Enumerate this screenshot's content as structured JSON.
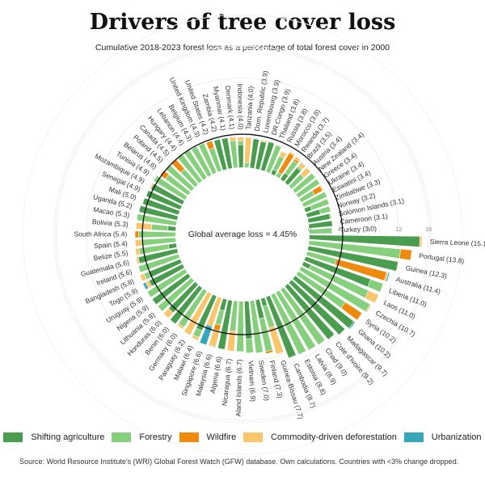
{
  "title": "Drivers of tree cover loss",
  "subtitle": "Cumulative 2018-2023 forest loss as a percentage of total forest cover in 2000",
  "source": "Source: World Resource Institute's (WRI) Global Forest Watch (GFW) database. Own calculations. Countries with <3% change dropped.",
  "chart_data": {
    "type": "radial-stacked-bar",
    "title": "Drivers of tree cover loss",
    "average_label": "Global average loss = 4.45%",
    "average": 4.45,
    "ticks": [
      0,
      4,
      8,
      12,
      16
    ],
    "ylim": [
      0,
      16
    ],
    "series": [
      {
        "name": "Shifting agriculture",
        "color": "#4a9c4e"
      },
      {
        "name": "Forestry",
        "color": "#86cf7c"
      },
      {
        "name": "Wildfire",
        "color": "#ef8a0c"
      },
      {
        "name": "Commodity-driven deforestation",
        "color": "#fbc56a"
      },
      {
        "name": "Urbanization",
        "color": "#35a7bb"
      }
    ],
    "countries": [
      {
        "name": "Sierra Leone",
        "total": 15.1,
        "values": [
          14.8,
          0,
          0,
          0.3,
          0
        ]
      },
      {
        "name": "Portugal",
        "total": 13.8,
        "values": [
          0,
          12.3,
          1.5,
          0,
          0
        ]
      },
      {
        "name": "Guinea",
        "total": 12.3,
        "values": [
          12.2,
          0,
          0,
          0.1,
          0
        ]
      },
      {
        "name": "Australia",
        "total": 11.4,
        "values": [
          0,
          4,
          7,
          0.2,
          0.2
        ]
      },
      {
        "name": "Liberia",
        "total": 11.0,
        "values": [
          9.2,
          1.8,
          0,
          0,
          0
        ]
      },
      {
        "name": "Laos",
        "total": 11.0,
        "values": [
          1,
          8.5,
          0,
          1.5,
          0
        ]
      },
      {
        "name": "Czechia",
        "total": 10.7,
        "values": [
          0,
          10.5,
          0,
          0.2,
          0
        ]
      },
      {
        "name": "Syria",
        "total": 10.2,
        "values": [
          0,
          7.5,
          2.7,
          0,
          0
        ]
      },
      {
        "name": "Ghana",
        "total": 10.2,
        "values": [
          10,
          0,
          0,
          0,
          0.2
        ]
      },
      {
        "name": "Madagascar",
        "total": 9.7,
        "values": [
          9.7,
          0,
          0,
          0,
          0
        ]
      },
      {
        "name": "Cote d'Ivoire",
        "total": 9.2,
        "values": [
          9.2,
          0,
          0,
          0,
          0
        ]
      },
      {
        "name": "Chad",
        "total": 9.0,
        "values": [
          0,
          9,
          0,
          0,
          0
        ]
      },
      {
        "name": "Latvia",
        "total": 8.9,
        "values": [
          0,
          8.9,
          0,
          0,
          0
        ]
      },
      {
        "name": "Estonia",
        "total": 8.8,
        "values": [
          0,
          8.8,
          0,
          0,
          0
        ]
      },
      {
        "name": "Cambodia",
        "total": 8.7,
        "values": [
          8.7,
          0,
          0,
          0,
          0
        ]
      },
      {
        "name": "Guinea-Bissau",
        "total": 7.7,
        "values": [
          1,
          3,
          0,
          3.7,
          0
        ]
      },
      {
        "name": "Finland",
        "total": 7.3,
        "values": [
          2.5,
          4.5,
          0.3,
          0,
          0
        ]
      },
      {
        "name": "Sweden",
        "total": 7.0,
        "values": [
          0,
          7,
          0,
          0,
          0
        ]
      },
      {
        "name": "Vietnam",
        "total": 6.9,
        "values": [
          5,
          1.9,
          0,
          0,
          0
        ]
      },
      {
        "name": "Aland Islands",
        "total": 6.7,
        "values": [
          0,
          6.7,
          0,
          0,
          0
        ]
      },
      {
        "name": "Nicaragua",
        "total": 6.7,
        "values": [
          0,
          4,
          0,
          2.7,
          0
        ]
      },
      {
        "name": "Algeria",
        "total": 6.6,
        "values": [
          6.6,
          0,
          0,
          0,
          0
        ]
      },
      {
        "name": "Malaysia",
        "total": 6.6,
        "values": [
          1.5,
          2,
          0.8,
          2.2,
          0.1
        ]
      },
      {
        "name": "Singapore",
        "total": 6.6,
        "values": [
          0,
          0,
          0,
          4,
          2.6
        ]
      },
      {
        "name": "Malawi",
        "total": 6.4,
        "values": [
          5,
          1,
          0,
          0.4,
          0
        ]
      },
      {
        "name": "Paraguay",
        "total": 6.2,
        "values": [
          0,
          0,
          0,
          6.2,
          0
        ]
      },
      {
        "name": "Germany",
        "total": 6.0,
        "values": [
          0,
          5.7,
          0,
          0.3,
          0
        ]
      },
      {
        "name": "Benin",
        "total": 6.0,
        "values": [
          6,
          0,
          0,
          0,
          0
        ]
      },
      {
        "name": "Honduras",
        "total": 6.0,
        "values": [
          5,
          0,
          0,
          1,
          0
        ]
      },
      {
        "name": "Lithuania",
        "total": 5.9,
        "values": [
          0,
          5.9,
          0,
          0,
          0
        ]
      },
      {
        "name": "Nigeria",
        "total": 5.9,
        "values": [
          5.9,
          0,
          0,
          0,
          0
        ]
      },
      {
        "name": "Uruguay",
        "total": 5.9,
        "values": [
          0,
          5.9,
          0,
          0,
          0
        ]
      },
      {
        "name": "Togo",
        "total": 5.9,
        "values": [
          5,
          0,
          0,
          0.5,
          0.4
        ]
      },
      {
        "name": "Bangladesh",
        "total": 5.8,
        "values": [
          4.6,
          0.6,
          0,
          0.6,
          0
        ]
      },
      {
        "name": "Ireland",
        "total": 5.6,
        "values": [
          0,
          5.6,
          0,
          0,
          0
        ]
      },
      {
        "name": "Guatemala",
        "total": 5.6,
        "values": [
          5.3,
          0,
          0,
          0.3,
          0
        ]
      },
      {
        "name": "Belize",
        "total": 5.5,
        "values": [
          1,
          4,
          0,
          0.5,
          0
        ]
      },
      {
        "name": "Spain",
        "total": 5.4,
        "values": [
          0,
          4.6,
          0,
          0.8,
          0
        ]
      },
      {
        "name": "South Africa",
        "total": 5.4,
        "values": [
          0,
          4.9,
          0.5,
          0,
          0
        ]
      },
      {
        "name": "Bolivia",
        "total": 5.3,
        "values": [
          1,
          2.2,
          0,
          2.1,
          0
        ]
      },
      {
        "name": "Macao",
        "total": 5.3,
        "values": [
          0,
          5.3,
          0,
          0,
          0
        ]
      },
      {
        "name": "Uganda",
        "total": 5.2,
        "values": [
          5.2,
          0,
          0,
          0,
          0
        ]
      },
      {
        "name": "Mali",
        "total": 5.0,
        "values": [
          5,
          0,
          0,
          0,
          0
        ]
      },
      {
        "name": "Senegal",
        "total": 4.9,
        "values": [
          4.9,
          0,
          0,
          0,
          0
        ]
      },
      {
        "name": "Mozambique",
        "total": 4.9,
        "values": [
          4.7,
          0,
          0,
          0.2,
          0
        ]
      },
      {
        "name": "Tunisia",
        "total": 4.9,
        "values": [
          0,
          4.9,
          0,
          0,
          0
        ]
      },
      {
        "name": "Belarus",
        "total": 4.6,
        "values": [
          0,
          3.7,
          0.9,
          0,
          0
        ]
      },
      {
        "name": "Poland",
        "total": 4.5,
        "values": [
          0,
          4.5,
          0,
          0,
          0
        ]
      },
      {
        "name": "Canada",
        "total": 4.5,
        "values": [
          0,
          2.7,
          1.8,
          0,
          0
        ]
      },
      {
        "name": "Hungary",
        "total": 4.4,
        "values": [
          0,
          4.4,
          0,
          0,
          0
        ]
      },
      {
        "name": "Lebanon",
        "total": 4.4,
        "values": [
          0,
          4.4,
          0,
          0,
          0
        ]
      },
      {
        "name": "Belgium",
        "total": 4.3,
        "values": [
          0,
          4.3,
          0,
          0,
          0
        ]
      },
      {
        "name": "United Kingdom",
        "total": 4.3,
        "values": [
          0,
          4.3,
          0,
          0,
          0
        ]
      },
      {
        "name": "United States",
        "total": 4.2,
        "values": [
          0,
          3.2,
          1,
          0,
          0
        ]
      },
      {
        "name": "Zambia",
        "total": 4.2,
        "values": [
          4.1,
          0,
          0,
          0,
          0.1
        ]
      },
      {
        "name": "Myanmar",
        "total": 4.1,
        "values": [
          4.1,
          0,
          0,
          0,
          0
        ]
      },
      {
        "name": "Denmark",
        "total": 4.1,
        "values": [
          0,
          3.6,
          0,
          0.5,
          0
        ]
      },
      {
        "name": "Indonesia",
        "total": 4.0,
        "values": [
          3,
          0.5,
          0,
          0.5,
          0
        ]
      },
      {
        "name": "Tanzania",
        "total": 4.0,
        "values": [
          0,
          0.6,
          0,
          3.4,
          0
        ]
      },
      {
        "name": "Dom. Republic",
        "total": 3.9,
        "values": [
          3.9,
          0,
          0,
          0,
          0
        ]
      },
      {
        "name": "Luxembourg",
        "total": 3.9,
        "values": [
          3.7,
          0,
          0,
          0.2,
          0
        ]
      },
      {
        "name": "DR Congo",
        "total": 3.9,
        "values": [
          3.9,
          0,
          0,
          0,
          0
        ]
      },
      {
        "name": "Thailand",
        "total": 3.8,
        "values": [
          0,
          3.8,
          0,
          0,
          0
        ]
      },
      {
        "name": "Russia",
        "total": 3.8,
        "values": [
          0.6,
          2,
          0,
          0.7,
          0
        ]
      },
      {
        "name": "Morocco",
        "total": 3.8,
        "values": [
          0,
          0.6,
          3,
          0.2,
          0
        ]
      },
      {
        "name": "Rwanda",
        "total": 3.7,
        "values": [
          1,
          2,
          0.3,
          0.4,
          0
        ]
      },
      {
        "name": "Brazil",
        "total": 3.5,
        "values": [
          2.5,
          0.3,
          0,
          0.6,
          0.1
        ]
      },
      {
        "name": "Austria",
        "total": 3.4,
        "values": [
          0,
          2.2,
          0,
          1.2,
          0
        ]
      },
      {
        "name": "New Zealand",
        "total": 3.4,
        "values": [
          0,
          3.4,
          0,
          0,
          0
        ]
      },
      {
        "name": "Greece",
        "total": 3.4,
        "values": [
          0,
          3.4,
          0,
          0,
          0
        ]
      },
      {
        "name": "Ukraine",
        "total": 3.4,
        "values": [
          0,
          2,
          1.2,
          0.2,
          0
        ]
      },
      {
        "name": "Eswatini",
        "total": 3.4,
        "values": [
          0,
          3.4,
          0,
          0,
          0
        ]
      },
      {
        "name": "Zimbabwe",
        "total": 3.3,
        "values": [
          0.8,
          2.5,
          0,
          0,
          0
        ]
      },
      {
        "name": "Norway",
        "total": 3.2,
        "values": [
          1.8,
          1.4,
          0,
          0,
          0
        ]
      },
      {
        "name": "Solomon Islands",
        "total": 3.1,
        "values": [
          2.9,
          0.2,
          0,
          0,
          0
        ]
      },
      {
        "name": "Cameroon",
        "total": 3.1,
        "values": [
          3.1,
          0,
          0,
          0,
          0
        ]
      },
      {
        "name": "Turkey",
        "total": 3.0,
        "values": [
          0,
          3,
          0,
          0,
          0
        ]
      }
    ]
  }
}
